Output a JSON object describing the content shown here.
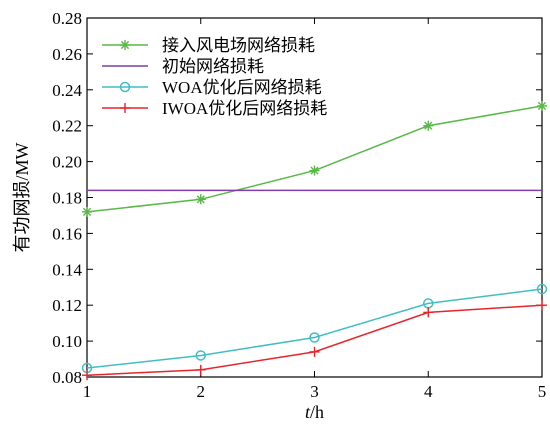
{
  "chart_data": {
    "type": "line",
    "x": [
      1,
      2,
      3,
      4,
      5
    ],
    "xlabel_italic": "t",
    "xlabel_rest": "/h",
    "ylabel": "有功网损/MW",
    "xlim": [
      1,
      5
    ],
    "ylim": [
      0.08,
      0.28
    ],
    "xticks": [
      "1",
      "2",
      "3",
      "4",
      "5"
    ],
    "yticks": [
      "0.08",
      "0.10",
      "0.12",
      "0.14",
      "0.16",
      "0.18",
      "0.20",
      "0.22",
      "0.24",
      "0.26",
      "0.28"
    ],
    "grid": false,
    "legend_position": "top-left",
    "series": [
      {
        "name": "接入风电场网络损耗",
        "values": [
          0.172,
          0.179,
          0.195,
          0.22,
          0.231
        ],
        "color": "#58b947",
        "marker": "asterisk"
      },
      {
        "name": "初始网络损耗",
        "values": [
          0.184,
          0.184,
          0.184,
          0.184,
          0.184
        ],
        "color": "#7e3fa3",
        "marker": "none"
      },
      {
        "name": "WOA优化后网络损耗",
        "values": [
          0.085,
          0.092,
          0.102,
          0.121,
          0.129
        ],
        "color": "#3fbfc4",
        "marker": "circle"
      },
      {
        "name": "IWOA优化后网络损耗",
        "values": [
          0.081,
          0.084,
          0.094,
          0.116,
          0.12
        ],
        "color": "#e8252a",
        "marker": "plus"
      }
    ]
  }
}
